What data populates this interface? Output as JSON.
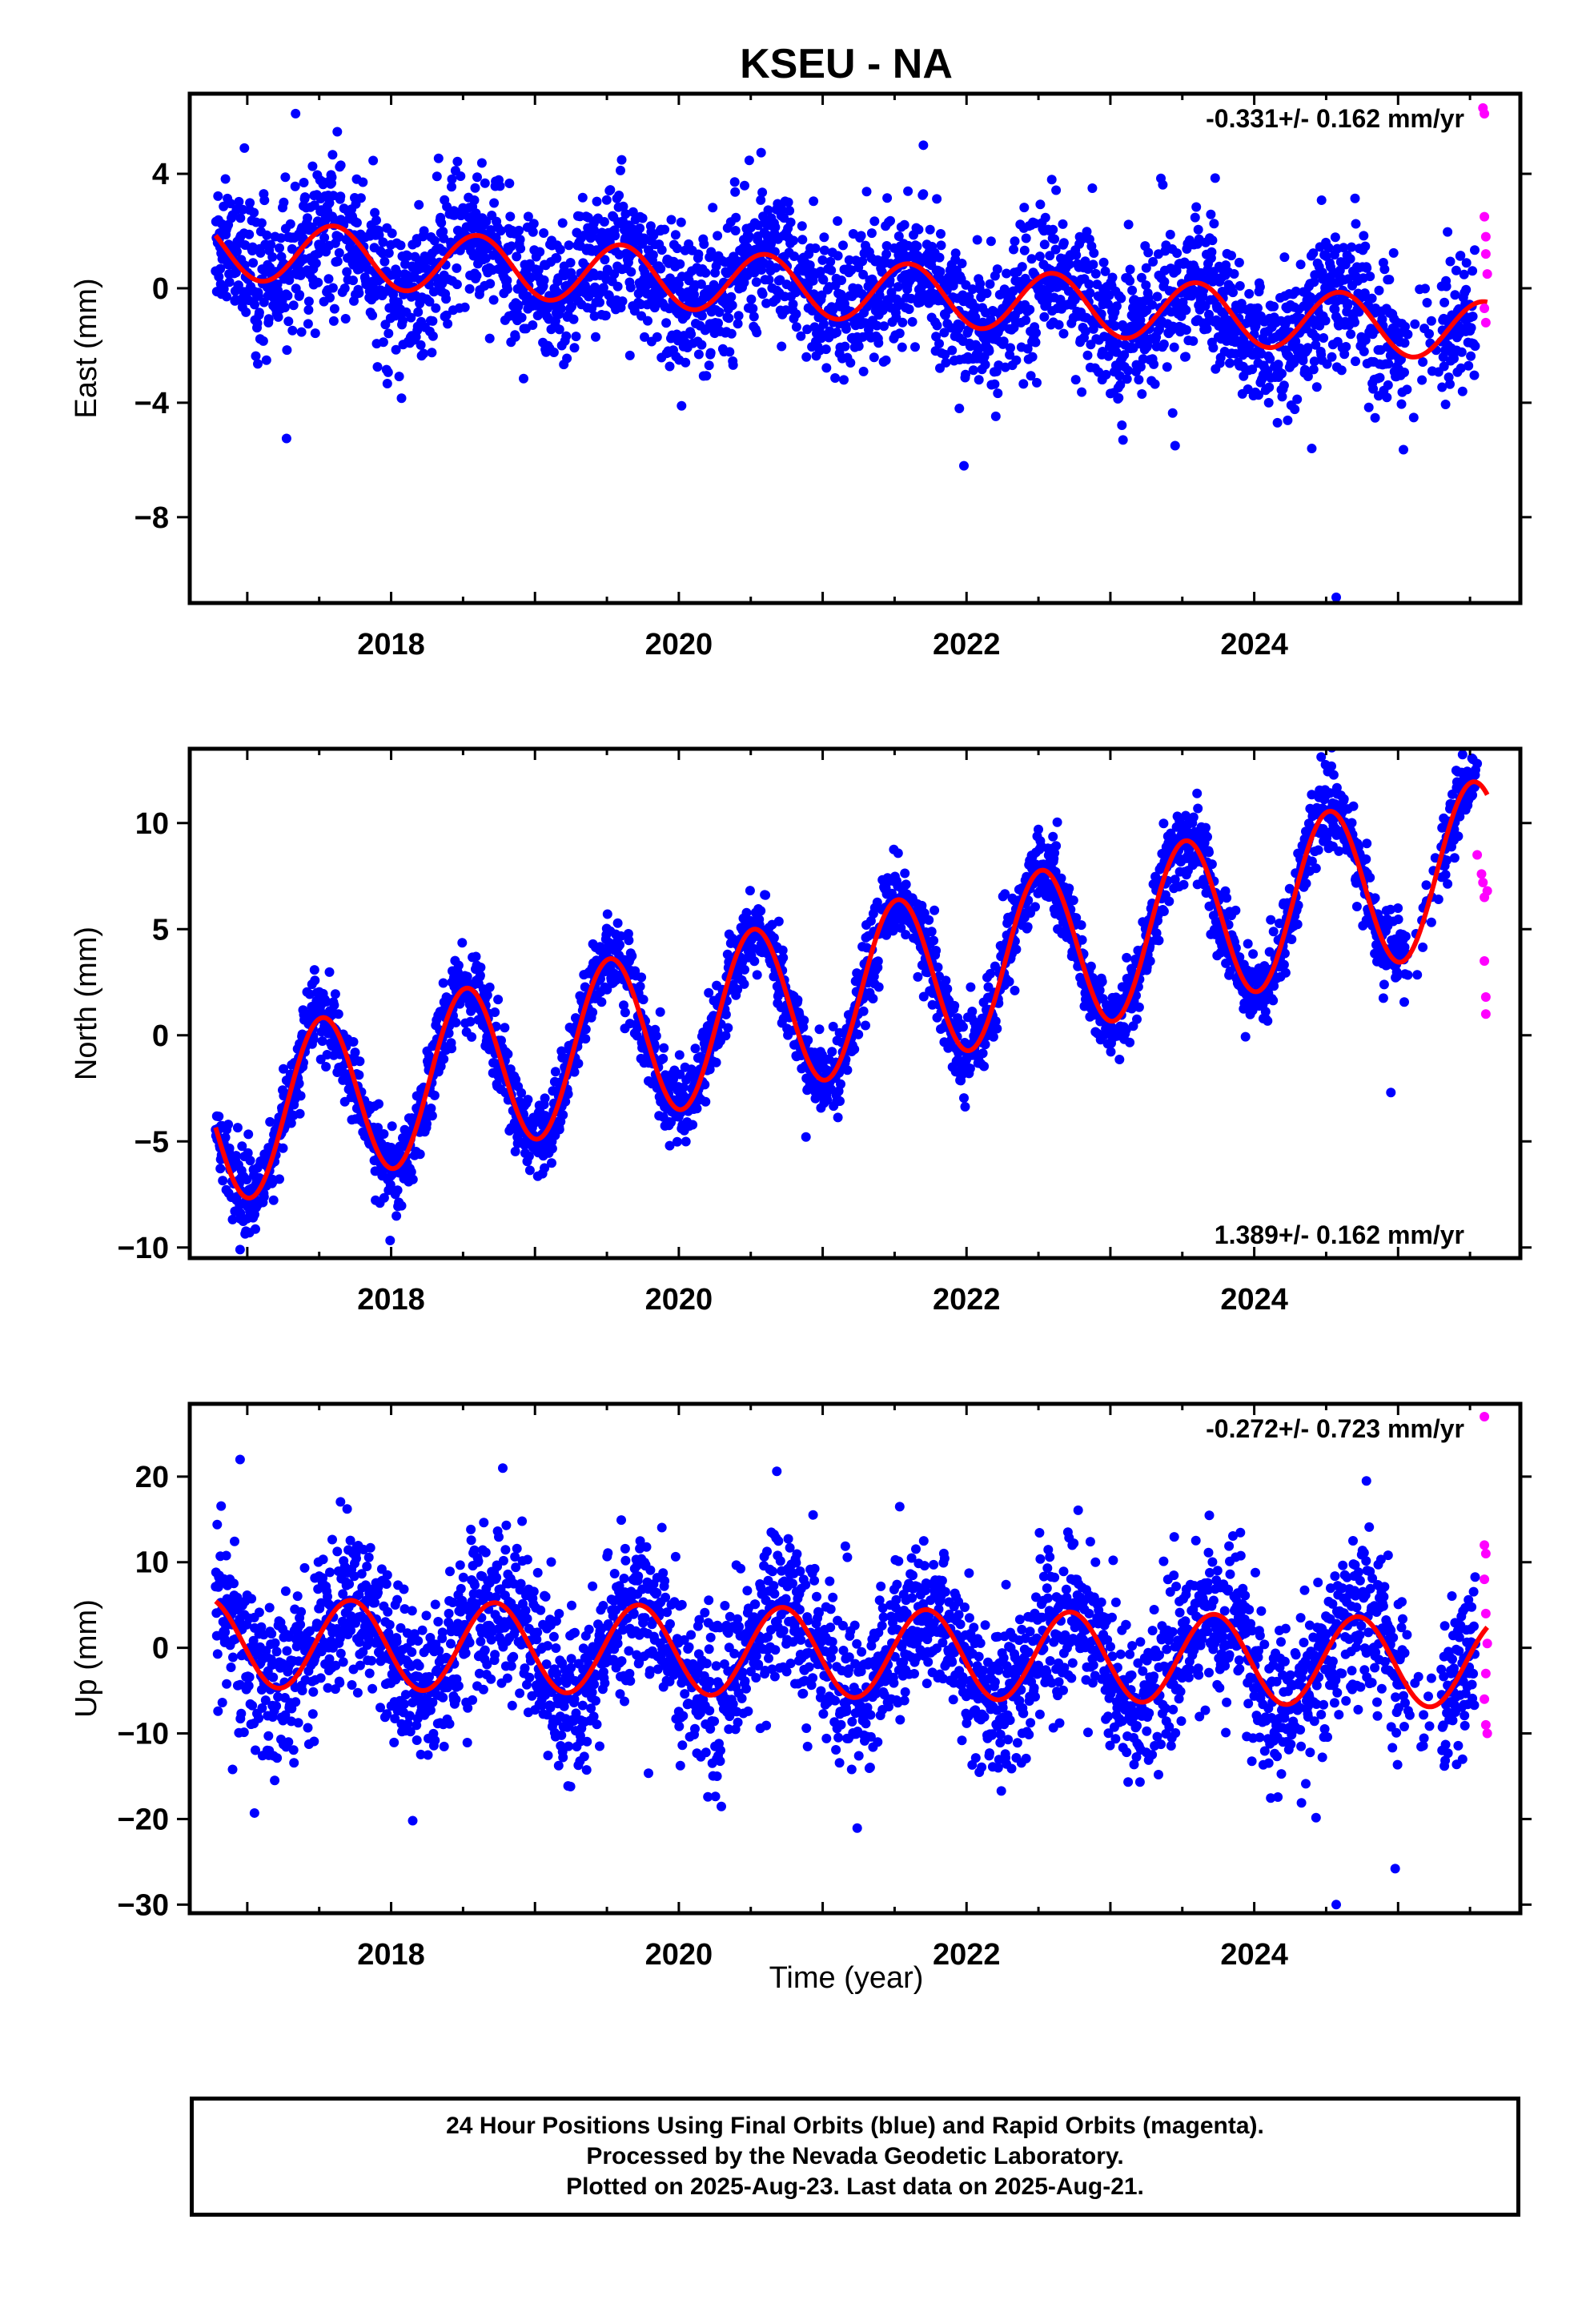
{
  "title": "KSEU - NA",
  "colors": {
    "final": "#0000ff",
    "rapid": "#ff00ff",
    "model": "#ff0000",
    "axis": "#000000"
  },
  "chart_data": [
    {
      "type": "scatter",
      "name": "east",
      "ylabel": "East (mm)",
      "rate_label": "-0.331+/- 0.162 mm/yr",
      "rate_position": "top-right",
      "xlim": [
        2016.6,
        2025.85
      ],
      "ylim": [
        -11.0,
        6.8
      ],
      "yticks": [
        -8,
        -4,
        0,
        4
      ],
      "ytick_labels": [
        "−8",
        "−4",
        "0",
        "4"
      ],
      "xticks": [
        2018,
        2020,
        2022,
        2024
      ],
      "xtick_labels": [
        "2018",
        "2020",
        "2022",
        "2024"
      ],
      "model": {
        "start": 2016.78,
        "end": 2025.62,
        "offset": 1.4,
        "trend": -0.331,
        "amplitude": 1.05,
        "peak_phase": 0.6
      },
      "final_scatter": 1.2,
      "rapid_points": [
        [
          2025.59,
          6.3
        ],
        [
          2025.6,
          6.1
        ],
        [
          2025.6,
          2.5
        ],
        [
          2025.61,
          1.8
        ],
        [
          2025.61,
          1.2
        ],
        [
          2025.62,
          0.5
        ],
        [
          2025.6,
          -0.7
        ],
        [
          2025.61,
          -1.2
        ]
      ],
      "outliers": [
        [
          2024.57,
          -10.8
        ],
        [
          2024.4,
          -5.6
        ],
        [
          2023.45,
          -5.5
        ],
        [
          2021.95,
          -4.2
        ],
        [
          2017.65,
          4.3
        ],
        [
          2016.98,
          4.9
        ],
        [
          2021.7,
          5.0
        ]
      ],
      "gaps": [
        [
          2025.05,
          2025.3
        ]
      ]
    },
    {
      "type": "scatter",
      "name": "north",
      "ylabel": "North (mm)",
      "rate_label": "1.389+/- 0.162 mm/yr",
      "rate_position": "bottom-right",
      "xlim": [
        2016.6,
        2025.85
      ],
      "ylim": [
        -10.5,
        13.5
      ],
      "yticks": [
        -10,
        -5,
        0,
        5,
        10
      ],
      "ytick_labels": [
        "−10",
        "−5",
        "0",
        "5",
        "10"
      ],
      "xticks": [
        2018,
        2020,
        2022,
        2024
      ],
      "xtick_labels": [
        "2018",
        "2020",
        "2022",
        "2024"
      ],
      "model": {
        "start": 2016.78,
        "end": 2025.62,
        "offset": -4.1,
        "trend": 1.389,
        "amplitude": 3.9,
        "peak_phase": 0.52
      },
      "final_scatter": 0.9,
      "rapid_points": [
        [
          2025.55,
          8.5
        ],
        [
          2025.58,
          7.6
        ],
        [
          2025.59,
          7.2
        ],
        [
          2025.6,
          6.5
        ],
        [
          2025.6,
          3.5
        ],
        [
          2025.61,
          1.8
        ],
        [
          2025.61,
          1.0
        ],
        [
          2025.62,
          6.8
        ]
      ],
      "outliers": [
        [
          2024.95,
          -2.7
        ],
        [
          2025.55,
          12.8
        ],
        [
          2016.95,
          -10.1
        ],
        [
          2017.45,
          2.4
        ]
      ],
      "gaps": [
        [
          2025.05,
          2025.3
        ]
      ]
    },
    {
      "type": "scatter",
      "name": "up",
      "ylabel": "Up (mm)",
      "rate_label": "-0.272+/- 0.723 mm/yr",
      "rate_position": "top-right",
      "xlim": [
        2016.6,
        2025.85
      ],
      "ylim": [
        -31.0,
        28.5
      ],
      "yticks": [
        -30,
        -20,
        -10,
        0,
        10,
        20
      ],
      "ytick_labels": [
        "−30",
        "−20",
        "−10",
        "0",
        "10",
        "20"
      ],
      "xticks": [
        2018,
        2020,
        2022,
        2024
      ],
      "xtick_labels": [
        "2018",
        "2020",
        "2022",
        "2024"
      ],
      "xlabel": "Time (year)",
      "model": {
        "start": 2016.78,
        "end": 2025.62,
        "offset": 0.6,
        "trend": -0.272,
        "amplitude": 5.2,
        "peak_phase": 0.72
      },
      "final_scatter": 4.5,
      "rapid_points": [
        [
          2025.6,
          27.0
        ],
        [
          2025.6,
          12.0
        ],
        [
          2025.61,
          11.0
        ],
        [
          2025.6,
          8.0
        ],
        [
          2025.61,
          4.0
        ],
        [
          2025.62,
          0.5
        ],
        [
          2025.61,
          -3.0
        ],
        [
          2025.6,
          -6.0
        ],
        [
          2025.61,
          -9.0
        ],
        [
          2025.62,
          -10.0
        ]
      ],
      "outliers": [
        [
          2024.57,
          -30.0
        ],
        [
          2024.98,
          -25.8
        ],
        [
          2017.05,
          -19.3
        ],
        [
          2018.15,
          -20.2
        ],
        [
          2016.95,
          22.0
        ],
        [
          2024.78,
          19.5
        ]
      ],
      "gaps": [
        [
          2025.05,
          2025.3
        ]
      ]
    }
  ],
  "footer": {
    "line1": "24 Hour Positions Using Final Orbits (blue) and Rapid Orbits (magenta).",
    "line2": "Processed by the Nevada Geodetic Laboratory.",
    "line3": "Plotted on 2025-Aug-23. Last data on 2025-Aug-21."
  }
}
